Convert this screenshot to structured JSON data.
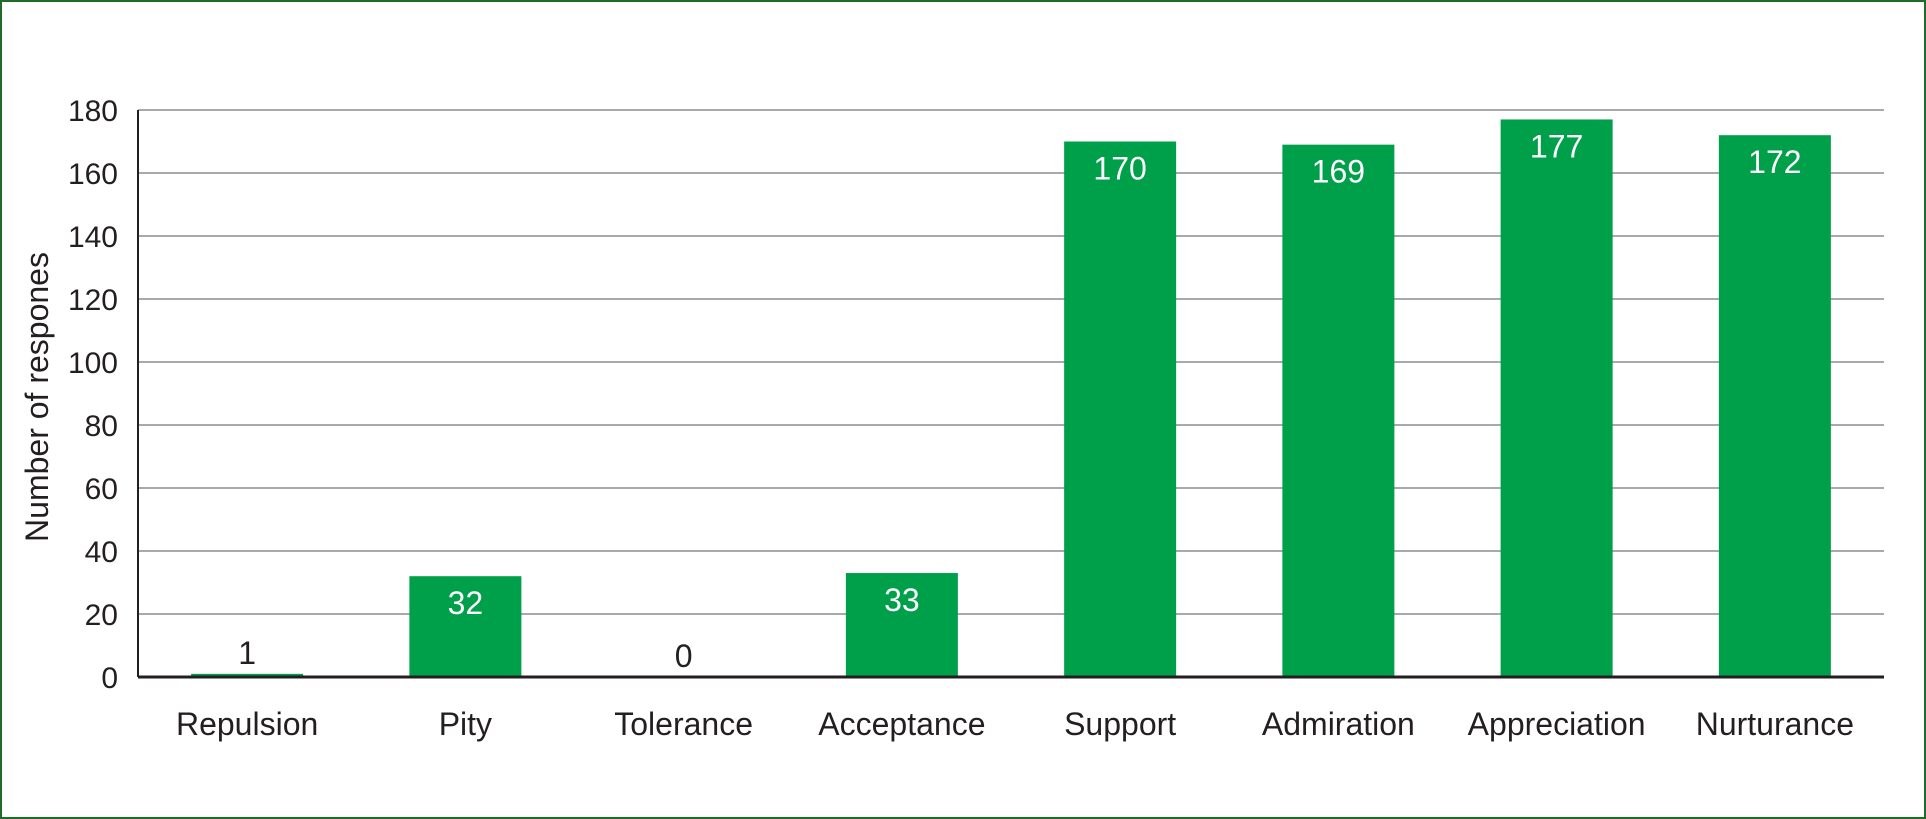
{
  "chart_data": {
    "type": "bar",
    "categories": [
      "Repulsion",
      "Pity",
      "Tolerance",
      "Acceptance",
      "Support",
      "Admiration",
      "Appreciation",
      "Nurturance"
    ],
    "values": [
      1,
      32,
      0,
      33,
      170,
      169,
      177,
      172
    ],
    "title": "",
    "xlabel": "",
    "ylabel": "Number of respones",
    "ylim": [
      0,
      180
    ],
    "yticks": [
      0,
      20,
      40,
      60,
      80,
      100,
      120,
      140,
      160,
      180
    ],
    "grid": true,
    "legend": "none",
    "bar_color": "#00a04b",
    "frame_color": "#1f6b2a",
    "gridline_color": "#a7a9ac"
  }
}
